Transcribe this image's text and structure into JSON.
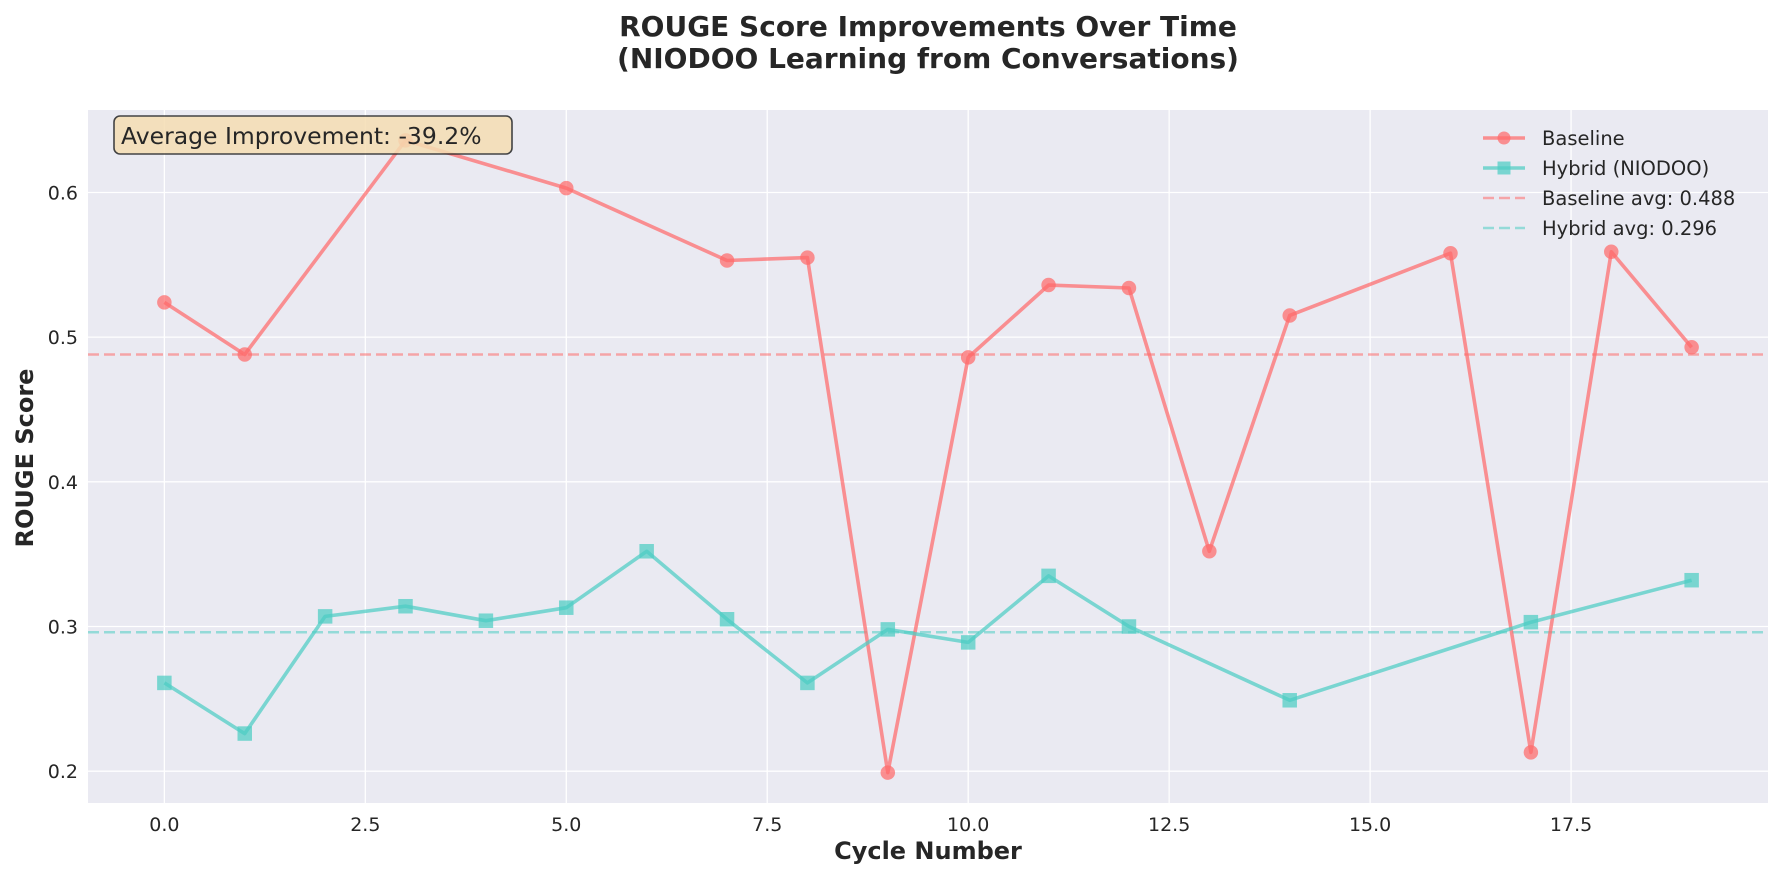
{
  "chart_data": {
    "type": "line",
    "title_line1": "ROUGE Score Improvements Over Time",
    "title_line2": "(NIODOO Learning from Conversations)",
    "xlabel": "Cycle Number",
    "ylabel": "ROUGE Score",
    "xlim": [
      -0.95,
      19.95
    ],
    "ylim": [
      0.178,
      0.657
    ],
    "x_ticks": [
      0.0,
      2.5,
      5.0,
      7.5,
      10.0,
      12.5,
      15.0,
      17.5
    ],
    "x_tick_labels": [
      "0.0",
      "2.5",
      "5.0",
      "7.5",
      "10.0",
      "12.5",
      "15.0",
      "17.5"
    ],
    "y_ticks": [
      0.2,
      0.3,
      0.4,
      0.5,
      0.6
    ],
    "y_tick_labels": [
      "0.2",
      "0.3",
      "0.4",
      "0.5",
      "0.6"
    ],
    "grid": true,
    "legend_position": "top-right",
    "annotation": "Average Improvement: -39.2%",
    "series": [
      {
        "name": "Baseline",
        "color": "#ff6b6b",
        "marker": "circle",
        "x": [
          0,
          1,
          3,
          5,
          7,
          8,
          9,
          10,
          11,
          12,
          13,
          14,
          16,
          17,
          18,
          19
        ],
        "values": [
          0.524,
          0.488,
          0.636,
          0.603,
          0.553,
          0.555,
          0.199,
          0.486,
          0.536,
          0.534,
          0.352,
          0.515,
          0.558,
          0.213,
          0.559,
          0.493
        ]
      },
      {
        "name": "Hybrid (NIODOO)",
        "color": "#4ecdc4",
        "marker": "square",
        "x": [
          0,
          1,
          2,
          3,
          4,
          5,
          6,
          7,
          8,
          9,
          10,
          11,
          12,
          14,
          17,
          19
        ],
        "values": [
          0.261,
          0.226,
          0.307,
          0.314,
          0.304,
          0.313,
          0.352,
          0.305,
          0.261,
          0.298,
          0.289,
          0.335,
          0.3,
          0.249,
          0.303,
          0.332
        ]
      }
    ],
    "reference_lines": [
      {
        "name": "Baseline avg: 0.488",
        "value": 0.488,
        "color": "#ff6b6b"
      },
      {
        "name": "Hybrid avg: 0.296",
        "value": 0.296,
        "color": "#4ecdc4"
      }
    ],
    "colors": {
      "plot_background": "#eaeaf2",
      "grid": "#ffffff",
      "annotation_fill": "#f5deb3",
      "annotation_border": "#262626"
    }
  }
}
